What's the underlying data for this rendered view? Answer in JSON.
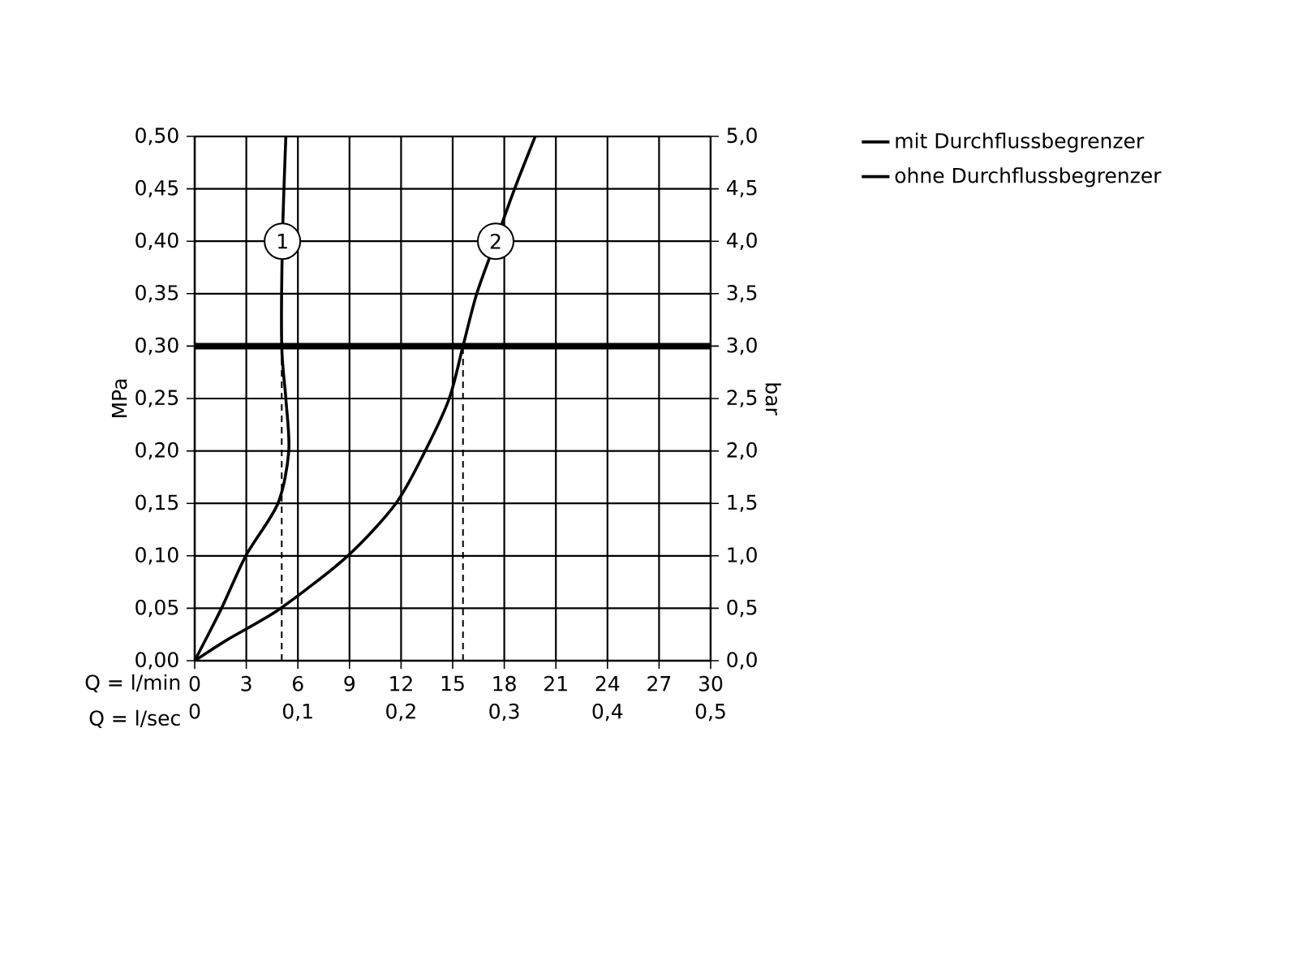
{
  "chart_data": {
    "type": "line",
    "xlabel": "Q = l/min",
    "x2label": "Q = l/sec",
    "ylabel": "MPa",
    "y2label": "bar",
    "xlim": [
      0,
      30
    ],
    "xticks": [
      0,
      3,
      6,
      9,
      12,
      15,
      18,
      21,
      24,
      27,
      30
    ],
    "x2lim": [
      0,
      0.5
    ],
    "x2ticks": [
      0,
      {
        "value": 0.1,
        "label": "0,1"
      },
      {
        "value": 0.2,
        "label": "0,2"
      },
      {
        "value": 0.3,
        "label": "0,3"
      },
      {
        "value": 0.4,
        "label": "0,4"
      },
      {
        "value": 0.5,
        "label": "0,5"
      }
    ],
    "ylim": [
      0,
      0.5
    ],
    "yticks": [
      {
        "value": 0,
        "label": "0,00"
      },
      {
        "value": 0.05,
        "label": "0,05"
      },
      {
        "value": 0.1,
        "label": "0,10"
      },
      {
        "value": 0.15,
        "label": "0,15"
      },
      {
        "value": 0.2,
        "label": "0,20"
      },
      {
        "value": 0.25,
        "label": "0,25"
      },
      {
        "value": 0.3,
        "label": "0,30"
      },
      {
        "value": 0.35,
        "label": "0,35"
      },
      {
        "value": 0.4,
        "label": "0,40"
      },
      {
        "value": 0.45,
        "label": "0,45"
      },
      {
        "value": 0.5,
        "label": "0,50"
      }
    ],
    "y2lim": [
      0,
      5
    ],
    "y2ticks": [
      {
        "value": 0,
        "label": "0,0"
      },
      {
        "value": 0.5,
        "label": "0,5"
      },
      {
        "value": 1,
        "label": "1,0"
      },
      {
        "value": 1.5,
        "label": "1,5"
      },
      {
        "value": 2,
        "label": "2,0"
      },
      {
        "value": 2.5,
        "label": "2,5"
      },
      {
        "value": 3,
        "label": "3,0"
      },
      {
        "value": 3.5,
        "label": "3,5"
      },
      {
        "value": 4,
        "label": "4,0"
      },
      {
        "value": 4.5,
        "label": "4,5"
      },
      {
        "value": 5,
        "label": "5,0"
      }
    ],
    "series": [
      {
        "name": "mit Durchflussbegrenzer",
        "color": "#000000",
        "x": [
          0,
          1.56,
          2.97,
          4.84,
          5.47,
          5.3,
          5.06,
          5.1,
          5.3
        ],
        "values": [
          0,
          0.05,
          0.1,
          0.15,
          0.2,
          0.25,
          0.3,
          0.4,
          0.5
        ]
      },
      {
        "name": "ohne Durchflussbegrenzer",
        "color": "#000000",
        "x": [
          0,
          1.9,
          5.0,
          8.9,
          11.7,
          13.4,
          14.8,
          15.6,
          16.4,
          17.5,
          18.6,
          19.8
        ],
        "values": [
          0,
          0.02,
          0.05,
          0.1,
          0.15,
          0.2,
          0.25,
          0.3,
          0.35,
          0.4,
          0.45,
          0.5
        ]
      },
      {
        "color": "#000000",
        "line_style": "dashed",
        "x": [
          5.06,
          5.06
        ],
        "values": [
          0,
          0.3
        ]
      },
      {
        "color": "#000000",
        "line_style": "dashed",
        "x": [
          15.6,
          15.6
        ],
        "values": [
          0,
          0.3
        ]
      }
    ],
    "ref_lines": [
      {
        "axis": "y",
        "value": 0.3,
        "color": "#000000"
      }
    ],
    "annotations": [
      {
        "text": "1",
        "x": 5.1,
        "y": 0.4
      },
      {
        "text": "2",
        "x": 17.5,
        "y": 0.4
      }
    ],
    "grid": true,
    "legend": "top right",
    "marker": "none",
    "line_style": "solid"
  }
}
